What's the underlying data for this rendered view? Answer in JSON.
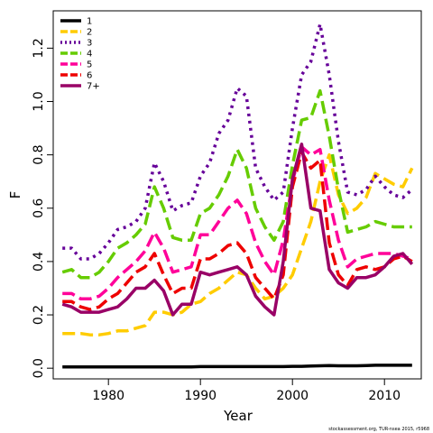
{
  "chart_data": {
    "type": "line",
    "title": "",
    "xlabel": "Year",
    "ylabel": "F",
    "xlim": [
      1974,
      2014
    ],
    "ylim": [
      -0.04,
      1.34
    ],
    "x_ticks": [
      1980,
      1990,
      2000,
      2010
    ],
    "y_ticks": [
      0.0,
      0.2,
      0.4,
      0.6,
      0.8,
      1.0,
      1.2
    ],
    "y_tick_labels": [
      "0.0",
      "0.2",
      "0.4",
      "0.6",
      "0.8",
      "1.0",
      "1.2"
    ],
    "grid": false,
    "legend_position": "top-left",
    "footnote": "stockassessment.org, TUR-nsea 2015, r5968",
    "x": [
      1975,
      1976,
      1977,
      1978,
      1979,
      1980,
      1981,
      1982,
      1983,
      1984,
      1985,
      1986,
      1987,
      1988,
      1989,
      1990,
      1991,
      1992,
      1993,
      1994,
      1995,
      1996,
      1997,
      1998,
      1999,
      2000,
      2001,
      2002,
      2003,
      2004,
      2005,
      2006,
      2007,
      2008,
      2009,
      2010,
      2011,
      2012,
      2013
    ],
    "series": [
      {
        "name": "1",
        "color": "#000000",
        "dash": "solid",
        "values": [
          0.005,
          0.005,
          0.005,
          0.005,
          0.005,
          0.005,
          0.005,
          0.005,
          0.005,
          0.005,
          0.005,
          0.005,
          0.005,
          0.005,
          0.005,
          0.006,
          0.006,
          0.006,
          0.006,
          0.006,
          0.006,
          0.006,
          0.006,
          0.006,
          0.006,
          0.007,
          0.007,
          0.008,
          0.009,
          0.01,
          0.009,
          0.009,
          0.009,
          0.01,
          0.011,
          0.011,
          0.011,
          0.011,
          0.011
        ]
      },
      {
        "name": "2",
        "color": "#FFCC00",
        "dash": "dashed",
        "values": [
          0.13,
          0.13,
          0.13,
          0.125,
          0.125,
          0.13,
          0.14,
          0.14,
          0.15,
          0.16,
          0.21,
          0.21,
          0.2,
          0.21,
          0.24,
          0.25,
          0.28,
          0.3,
          0.33,
          0.36,
          0.35,
          0.3,
          0.26,
          0.27,
          0.3,
          0.35,
          0.45,
          0.55,
          0.7,
          0.8,
          0.65,
          0.58,
          0.6,
          0.64,
          0.73,
          0.71,
          0.69,
          0.68,
          0.75
        ]
      },
      {
        "name": "3",
        "color": "#660099",
        "dash": "dotted",
        "values": [
          0.45,
          0.45,
          0.41,
          0.41,
          0.43,
          0.47,
          0.52,
          0.53,
          0.55,
          0.6,
          0.77,
          0.7,
          0.59,
          0.61,
          0.62,
          0.72,
          0.77,
          0.88,
          0.93,
          1.05,
          1.02,
          0.75,
          0.68,
          0.63,
          0.66,
          0.9,
          1.1,
          1.15,
          1.29,
          1.1,
          0.85,
          0.66,
          0.65,
          0.67,
          0.72,
          0.68,
          0.65,
          0.64,
          0.67
        ]
      },
      {
        "name": "4",
        "color": "#66CC00",
        "dash": "dashed",
        "values": [
          0.36,
          0.37,
          0.34,
          0.34,
          0.36,
          0.4,
          0.45,
          0.47,
          0.5,
          0.54,
          0.68,
          0.6,
          0.49,
          0.48,
          0.48,
          0.58,
          0.6,
          0.65,
          0.72,
          0.82,
          0.75,
          0.6,
          0.53,
          0.48,
          0.55,
          0.76,
          0.93,
          0.94,
          1.04,
          0.87,
          0.67,
          0.51,
          0.52,
          0.53,
          0.55,
          0.54,
          0.53,
          0.53,
          0.53
        ]
      },
      {
        "name": "5",
        "color": "#FF0099",
        "dash": "dashed",
        "values": [
          0.28,
          0.28,
          0.26,
          0.26,
          0.27,
          0.3,
          0.34,
          0.37,
          0.4,
          0.44,
          0.51,
          0.45,
          0.36,
          0.37,
          0.38,
          0.5,
          0.5,
          0.55,
          0.6,
          0.63,
          0.58,
          0.47,
          0.4,
          0.35,
          0.48,
          0.7,
          0.83,
          0.8,
          0.82,
          0.63,
          0.48,
          0.38,
          0.41,
          0.42,
          0.43,
          0.43,
          0.43,
          0.42,
          0.41
        ]
      },
      {
        "name": "6",
        "color": "#EE0000",
        "dash": "dashed",
        "values": [
          0.25,
          0.25,
          0.23,
          0.22,
          0.23,
          0.26,
          0.28,
          0.32,
          0.36,
          0.38,
          0.43,
          0.35,
          0.28,
          0.3,
          0.3,
          0.41,
          0.41,
          0.43,
          0.46,
          0.47,
          0.43,
          0.34,
          0.3,
          0.26,
          0.35,
          0.68,
          0.81,
          0.75,
          0.78,
          0.47,
          0.35,
          0.31,
          0.37,
          0.38,
          0.37,
          0.38,
          0.41,
          0.42,
          0.4
        ]
      },
      {
        "name": "7+",
        "color": "#990066",
        "dash": "solid",
        "values": [
          0.24,
          0.23,
          0.21,
          0.21,
          0.21,
          0.22,
          0.23,
          0.26,
          0.3,
          0.3,
          0.33,
          0.29,
          0.2,
          0.24,
          0.24,
          0.36,
          0.35,
          0.36,
          0.37,
          0.38,
          0.35,
          0.27,
          0.23,
          0.2,
          0.4,
          0.71,
          0.84,
          0.6,
          0.59,
          0.37,
          0.32,
          0.3,
          0.34,
          0.34,
          0.35,
          0.38,
          0.42,
          0.43,
          0.39
        ]
      }
    ]
  }
}
